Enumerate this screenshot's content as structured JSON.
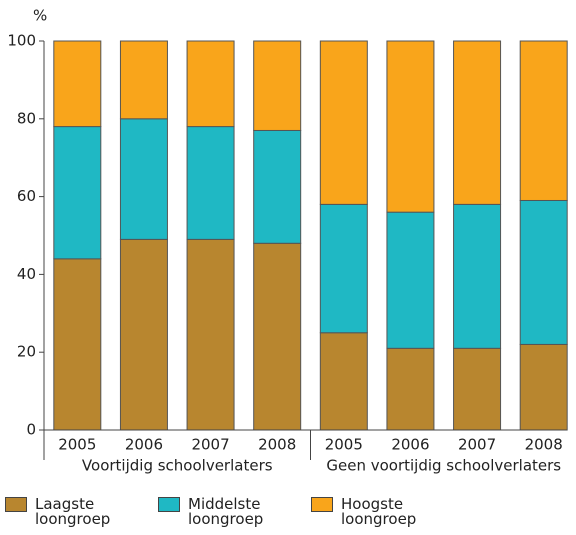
{
  "chart_data": {
    "type": "stacked_bar",
    "y_label": "%",
    "categories": [
      "2005",
      "2006",
      "2007",
      "2008",
      "2005",
      "2006",
      "2007",
      "2008"
    ],
    "groups": [
      {
        "label": "Voortijdig schoolverlaters",
        "size": 4
      },
      {
        "label": "Geen voortijdig schoolverlaters",
        "size": 4
      }
    ],
    "series": [
      {
        "name": "Laagste loongroep",
        "color": "#b8862f",
        "values": [
          44,
          49,
          49,
          48,
          25,
          21,
          21,
          22
        ]
      },
      {
        "name": "Middelste loongroep",
        "color": "#1fb8c4",
        "values": [
          34,
          31,
          29,
          29,
          33,
          35,
          37,
          37
        ]
      },
      {
        "name": "Hoogste loongroep",
        "color": "#f9a51b",
        "values": [
          22,
          20,
          22,
          23,
          42,
          44,
          42,
          41
        ]
      }
    ],
    "ylim": [
      0,
      100
    ],
    "yticks": [
      0,
      20,
      40,
      60,
      80,
      100
    ]
  }
}
